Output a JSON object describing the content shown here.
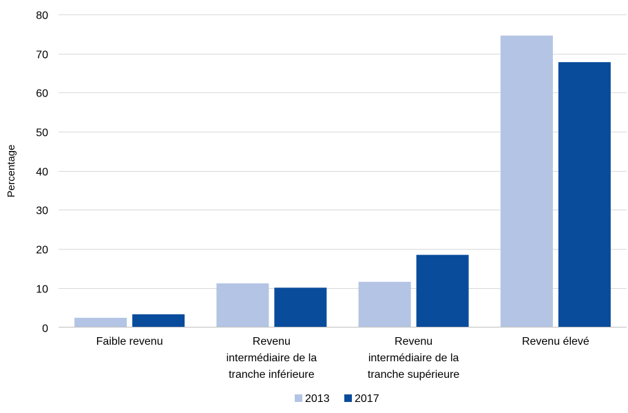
{
  "chart_data": {
    "type": "bar",
    "ylabel": "Percentage",
    "ylim": [
      0,
      80
    ],
    "yticks": [
      0,
      10,
      20,
      30,
      40,
      50,
      60,
      70,
      80
    ],
    "grid": true,
    "legend_position": "bottom",
    "categories": [
      [
        "Faible revenu"
      ],
      [
        "Revenu",
        "intermédiaire de la",
        "tranche inférieure"
      ],
      [
        "Revenu",
        "intermédiaire de la",
        "tranche supérieure"
      ],
      [
        "Revenu élevé"
      ]
    ],
    "series": [
      {
        "name": "2013",
        "color": "#b4c4e4",
        "values": [
          2.4,
          11.2,
          11.6,
          74.6
        ]
      },
      {
        "name": "2017",
        "color": "#0a4c9c",
        "values": [
          3.3,
          10.1,
          18.5,
          67.8
        ]
      }
    ]
  }
}
